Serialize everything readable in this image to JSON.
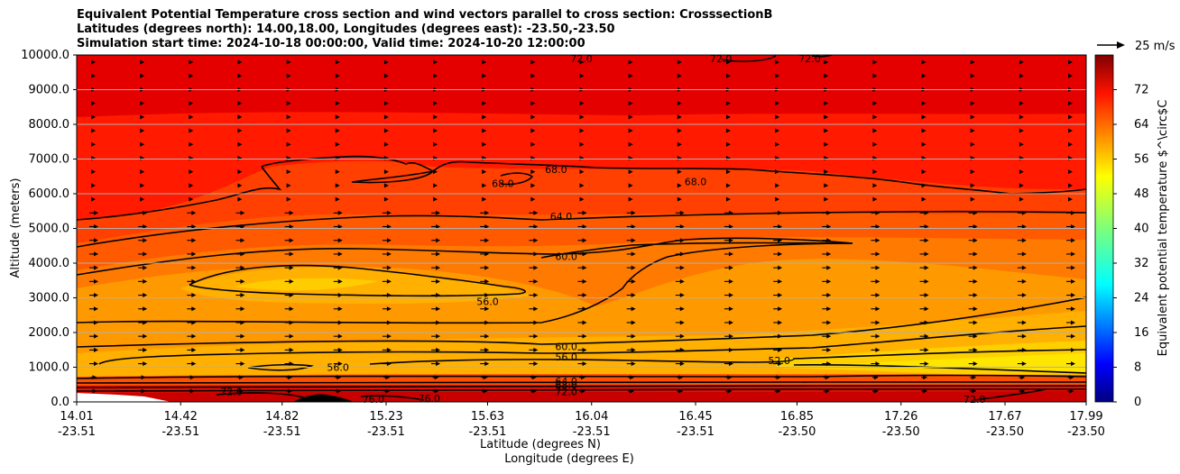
{
  "chart_data": {
    "type": "heatmap",
    "title_lines": [
      "Equivalent Potential Temperature cross section and wind vectors parallel to cross section: CrosssectionB",
      "Latitudes (degrees north): 14.00,18.00, Longitudes (degrees east): -23.50,-23.50",
      "Simulation start time: 2024-10-18 00:00:00, Valid time: 2024-10-20 12:00:00"
    ],
    "ylabel": "Altitude (meters)",
    "xlabel_lat": "Latitude (degrees N)",
    "xlabel_lon": "Longitude (degrees E)",
    "ylim": [
      0,
      10000
    ],
    "yticks": [
      "0.0",
      "1000.0",
      "2000.0",
      "3000.0",
      "4000.0",
      "5000.0",
      "6000.0",
      "7000.0",
      "8000.0",
      "9000.0",
      "10000.0"
    ],
    "xticks": [
      {
        "lat": "14.01",
        "lon": "-23.51"
      },
      {
        "lat": "14.42",
        "lon": "-23.51"
      },
      {
        "lat": "14.82",
        "lon": "-23.51"
      },
      {
        "lat": "15.23",
        "lon": "-23.51"
      },
      {
        "lat": "15.63",
        "lon": "-23.51"
      },
      {
        "lat": "16.04",
        "lon": "-23.51"
      },
      {
        "lat": "16.45",
        "lon": "-23.51"
      },
      {
        "lat": "16.85",
        "lon": "-23.50"
      },
      {
        "lat": "17.26",
        "lon": "-23.50"
      },
      {
        "lat": "17.67",
        "lon": "-23.50"
      },
      {
        "lat": "17.99",
        "lon": "-23.50"
      }
    ],
    "grid": "horizontal",
    "colorbar": {
      "label": "Equivalent potential temperature $^\\circ$C",
      "range": [
        0,
        80
      ],
      "ticks": [
        "0",
        "8",
        "16",
        "24",
        "32",
        "40",
        "48",
        "56",
        "64",
        "72"
      ],
      "colormap": "jet"
    },
    "contour_labels": [
      {
        "text": "68.0",
        "lat": 15.9,
        "alt": 6700
      },
      {
        "text": "68.0",
        "lat": 15.69,
        "alt": 6300
      },
      {
        "text": "68.0",
        "lat": 16.45,
        "alt": 6350
      },
      {
        "text": "64.0",
        "lat": 15.92,
        "alt": 5350
      },
      {
        "text": "60.0",
        "lat": 15.94,
        "alt": 4200
      },
      {
        "text": "56.0",
        "lat": 15.63,
        "alt": 2900
      },
      {
        "text": "60.0",
        "lat": 15.94,
        "alt": 1600
      },
      {
        "text": "56.0",
        "lat": 15.94,
        "alt": 1300
      },
      {
        "text": "56.0",
        "lat": 15.04,
        "alt": 1000
      },
      {
        "text": "52.0",
        "lat": 16.78,
        "alt": 1200
      },
      {
        "text": "64.0",
        "lat": 15.94,
        "alt": 600
      },
      {
        "text": "68.0",
        "lat": 15.94,
        "alt": 500
      },
      {
        "text": "72.0",
        "lat": 15.94,
        "alt": 300
      },
      {
        "text": "72.0",
        "lat": 14.62,
        "alt": 300
      },
      {
        "text": "76.0",
        "lat": 15.18,
        "alt": 80
      },
      {
        "text": "76.0",
        "lat": 15.4,
        "alt": 100
      },
      {
        "text": "72.0",
        "lat": 17.55,
        "alt": 80
      },
      {
        "text": "72.0",
        "lat": 16.0,
        "alt": 9900
      },
      {
        "text": "72.0",
        "lat": 16.55,
        "alt": 9900
      },
      {
        "text": "72.0",
        "lat": 16.9,
        "alt": 9900
      }
    ],
    "wind_vector_key": "25 m/s"
  }
}
